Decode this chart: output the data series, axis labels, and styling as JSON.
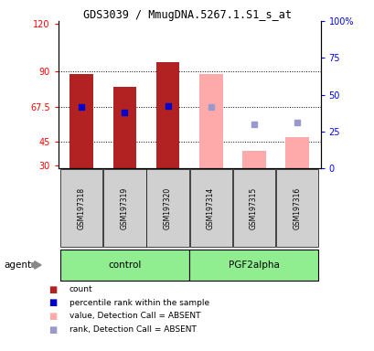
{
  "title": "GDS3039 / MmugDNA.5267.1.S1_s_at",
  "samples": [
    "GSM197318",
    "GSM197319",
    "GSM197320",
    "GSM197314",
    "GSM197315",
    "GSM197316"
  ],
  "group_labels": [
    "control",
    "PGF2alpha"
  ],
  "ylim_left": [
    28,
    122
  ],
  "ylim_right": [
    0,
    100
  ],
  "yticks_left": [
    30,
    45,
    67.5,
    90,
    120
  ],
  "yticks_right": [
    0,
    25,
    50,
    75,
    100
  ],
  "ytick_labels_right": [
    "0",
    "25",
    "50",
    "75",
    "100%"
  ],
  "hlines": [
    45,
    67.5,
    90
  ],
  "bar_color_present": "#b22222",
  "bar_color_absent": "#ffaaaa",
  "rank_color_present": "#0000cc",
  "rank_color_absent": "#9999cc",
  "count_values": [
    88.5,
    80.0,
    96.0,
    null,
    null,
    null
  ],
  "count_absent_values": [
    null,
    null,
    null,
    88.0,
    39.0,
    48.0
  ],
  "rank_values": [
    67.5,
    63.5,
    68.0,
    null,
    null,
    null
  ],
  "rank_absent_values": [
    null,
    null,
    null,
    67.5,
    56.0,
    57.5
  ],
  "bar_bottom": 28,
  "legend_items": [
    {
      "color": "#b22222",
      "label": "count"
    },
    {
      "color": "#0000cc",
      "label": "percentile rank within the sample"
    },
    {
      "color": "#ffaaaa",
      "label": "value, Detection Call = ABSENT"
    },
    {
      "color": "#9999cc",
      "label": "rank, Detection Call = ABSENT"
    }
  ]
}
